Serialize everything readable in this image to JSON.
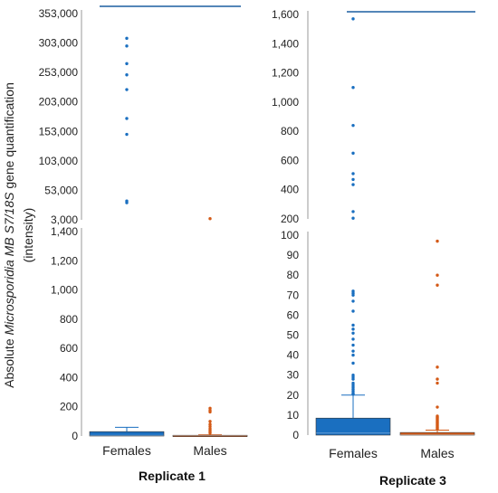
{
  "colors": {
    "females": "#1a6fc0",
    "males": "#d45a17",
    "axis": "#999999"
  },
  "ylabel": {
    "pre": "Absolute ",
    "italic": "Microsporidia MB S7/18S",
    "post": " gene quantification",
    "line2": "(intensity)"
  },
  "chart_data": [
    {
      "type": "box",
      "title": "Replicate 1",
      "categories": [
        "Females",
        "Males"
      ],
      "broken_axis": true,
      "panels": [
        {
          "ylim": [
            3000,
            353000
          ],
          "ticks": [
            "353,000",
            "303,000",
            "253,000",
            "203,000",
            "153,000",
            "103,000",
            "53,000",
            "3,000"
          ],
          "tick_values": [
            353000,
            303000,
            253000,
            203000,
            153000,
            103000,
            53000,
            3000
          ],
          "outliers": {
            "Females": [
              311000,
              298000,
              268000,
              249000,
              224000,
              175000,
              148000,
              35000,
              32000
            ],
            "Males": [
              5000
            ]
          },
          "whisker_cap": 363000,
          "whisker_series": "Females"
        },
        {
          "ylim": [
            0,
            1400
          ],
          "ticks": [
            "1,400",
            "1,200",
            "1,000",
            "800",
            "600",
            "400",
            "200",
            "0"
          ],
          "tick_values": [
            1400,
            1200,
            1000,
            800,
            600,
            400,
            200,
            0
          ],
          "boxes": {
            "Females": {
              "q1": 0,
              "median": 5,
              "q3": 30,
              "whisker_high": 60
            },
            "Males": {
              "q1": 0,
              "median": 2,
              "q3": 5,
              "whisker_high": 8
            }
          },
          "outliers": {
            "Females": [],
            "Males": [
              190,
              175,
              165,
              100,
              80,
              65,
              50,
              40,
              30,
              20
            ]
          }
        }
      ]
    },
    {
      "type": "box",
      "title": "Replicate 3",
      "categories": [
        "Females",
        "Males"
      ],
      "broken_axis": true,
      "panels": [
        {
          "ylim": [
            200,
            1600
          ],
          "ticks": [
            "1,600",
            "1,400",
            "1,200",
            "1,000",
            "800",
            "600",
            "400",
            "200"
          ],
          "tick_values": [
            1600,
            1400,
            1200,
            1000,
            800,
            600,
            400,
            200
          ],
          "outliers": {
            "Females": [
              1570,
              1100,
              840,
              650,
              510,
              470,
              435,
              250,
              205
            ],
            "Males": []
          },
          "whisker_cap": 1630,
          "whisker_series": "Females"
        },
        {
          "ylim": [
            0,
            100
          ],
          "ticks": [
            "100",
            "90",
            "80",
            "70",
            "60",
            "50",
            "40",
            "30",
            "20",
            "10",
            "0"
          ],
          "tick_values": [
            100,
            90,
            80,
            70,
            60,
            50,
            40,
            30,
            20,
            10,
            0
          ],
          "boxes": {
            "Females": {
              "q1": 0,
              "median": 1,
              "q3": 8.5,
              "whisker_high": 20
            },
            "Males": {
              "q1": 0,
              "median": 0.3,
              "q3": 1.3,
              "whisker_high": 2.5
            }
          },
          "outliers": {
            "Females": [
              72,
              71,
              70,
              67,
              62,
              55,
              53,
              51,
              48,
              45,
              42,
              40,
              36,
              30,
              29,
              28,
              26,
              25,
              24,
              23,
              22,
              21,
              20.5
            ],
            "Males": [
              97,
              80,
              75,
              34,
              28,
              26,
              14,
              9.5,
              9,
              8.5,
              8,
              7.5,
              7,
              6.5,
              6,
              5.5,
              5,
              4.5,
              4,
              3.5,
              3
            ]
          }
        }
      ]
    }
  ]
}
